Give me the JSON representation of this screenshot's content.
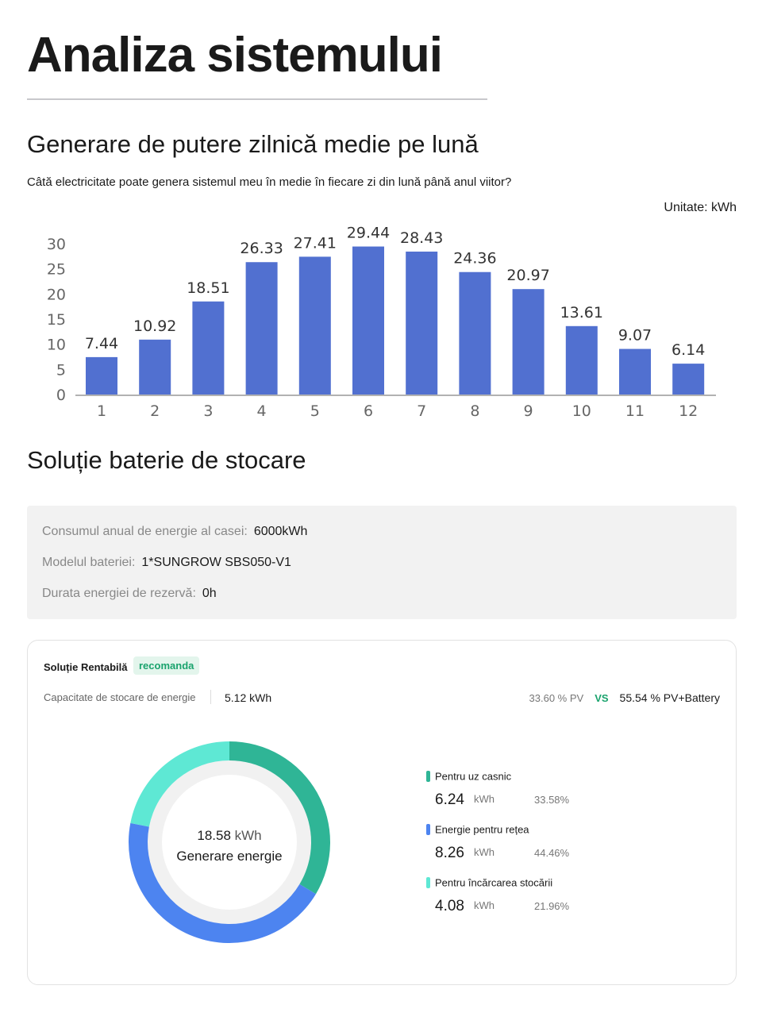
{
  "title": "Analiza sistemului",
  "generation": {
    "heading": "Generare de putere zilnică medie pe lună",
    "question": "Câtă electricitate poate genera sistemul meu în medie în fiecare zi din lună până anul viitor?",
    "unit_label": "Unitate: kWh"
  },
  "chart_data": {
    "type": "bar",
    "categories": [
      "1",
      "2",
      "3",
      "4",
      "5",
      "6",
      "7",
      "8",
      "9",
      "10",
      "11",
      "12"
    ],
    "values": [
      7.44,
      10.92,
      18.51,
      26.33,
      27.41,
      29.44,
      28.43,
      24.36,
      20.97,
      13.61,
      9.07,
      6.14
    ],
    "value_labels": [
      "7.44",
      "10.92",
      "18.51",
      "26.33",
      "27.41",
      "29.44",
      "28.43",
      "24.36",
      "20.97",
      "13.61",
      "9.07",
      "6.14"
    ],
    "yticks": [
      "0",
      "5",
      "10",
      "15",
      "20",
      "25",
      "30"
    ],
    "ylim": [
      0,
      30
    ],
    "color": "#5170d0",
    "ylabel": "kWh"
  },
  "storage": {
    "heading": "Soluție baterie de stocare",
    "rows": [
      {
        "label": "Consumul anual de energie al casei:",
        "value": "6000kWh"
      },
      {
        "label": "Modelul bateriei:",
        "value": "1*SUNGROW SBS050-V1"
      },
      {
        "label": "Durata energiei de rezervă:",
        "value": "0h"
      }
    ]
  },
  "solution": {
    "title": "Soluție Rentabilă",
    "badge": "recomanda",
    "capacity_label": "Capacitate de stocare de energie",
    "capacity_value": "5.12 kWh",
    "pv": "33.60 % PV",
    "vs": "VS",
    "pv_battery": "55.54 % PV+Battery",
    "total_value": "18.58",
    "total_unit": "kWh",
    "total_label": "Generare energie",
    "segments": [
      {
        "label": "Pentru uz casnic",
        "value": "6.24",
        "unit": "kWh",
        "percent": "33.58%",
        "fraction": 0.3358,
        "color": "#2fb596"
      },
      {
        "label": "Energie pentru rețea",
        "value": "8.26",
        "unit": "kWh",
        "percent": "44.46%",
        "fraction": 0.4446,
        "color": "#4d84f0"
      },
      {
        "label": "Pentru încărcarea stocării",
        "value": "4.08",
        "unit": "kWh",
        "percent": "21.96%",
        "fraction": 0.2196,
        "color": "#5ee8d4"
      }
    ]
  }
}
